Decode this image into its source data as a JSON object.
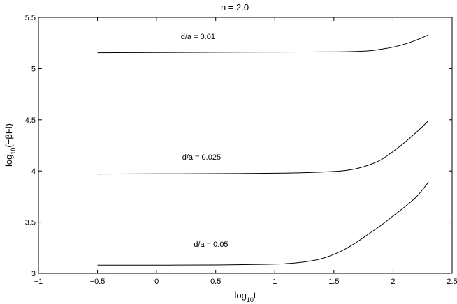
{
  "chart_data": {
    "type": "line",
    "title": "n = 2.0",
    "xlabel": {
      "base": "log",
      "sub": "10",
      "tail": "t"
    },
    "ylabel": {
      "base": "log",
      "sub": "10",
      "tail": "(−βFl)"
    },
    "xlim": [
      -1,
      2.5
    ],
    "ylim": [
      3,
      5.5
    ],
    "xticks": [
      "−1",
      "−0.5",
      "0",
      "0.5",
      "1",
      "1.5",
      "2",
      "2.5"
    ],
    "yticks": [
      "3",
      "3.5",
      "4",
      "4.5",
      "5",
      "5.5"
    ],
    "grid": false,
    "series": [
      {
        "name": "d/a = 0.01",
        "x": [
          -0.5,
          0.0,
          0.5,
          1.0,
          1.3,
          1.6,
          1.8,
          1.9,
          2.0,
          2.1,
          2.2,
          2.3
        ],
        "y": [
          5.155,
          5.158,
          5.16,
          5.162,
          5.163,
          5.165,
          5.175,
          5.19,
          5.21,
          5.24,
          5.28,
          5.33
        ]
      },
      {
        "name": "d/a = 0.025",
        "x": [
          -0.5,
          0.0,
          0.5,
          1.0,
          1.3,
          1.5,
          1.6,
          1.7,
          1.8,
          1.9,
          2.0,
          2.1,
          2.2,
          2.3
        ],
        "y": [
          3.97,
          3.972,
          3.974,
          3.978,
          3.985,
          3.995,
          4.005,
          4.025,
          4.06,
          4.11,
          4.19,
          4.28,
          4.38,
          4.49
        ]
      },
      {
        "name": "d/a = 0.05",
        "x": [
          -0.5,
          0.0,
          0.5,
          1.0,
          1.1,
          1.2,
          1.3,
          1.4,
          1.5,
          1.6,
          1.7,
          1.8,
          1.9,
          2.0,
          2.1,
          2.2,
          2.3
        ],
        "y": [
          3.08,
          3.08,
          3.082,
          3.09,
          3.095,
          3.105,
          3.12,
          3.145,
          3.185,
          3.24,
          3.31,
          3.39,
          3.47,
          3.56,
          3.65,
          3.75,
          3.89
        ]
      }
    ],
    "labels": [
      {
        "text": "d/a = 0.01",
        "x": 0.35,
        "y": 5.29
      },
      {
        "text": "d/a = 0.025",
        "x": 0.38,
        "y": 4.11
      },
      {
        "text": "d/a = 0.05",
        "x": 0.46,
        "y": 3.26
      }
    ]
  }
}
